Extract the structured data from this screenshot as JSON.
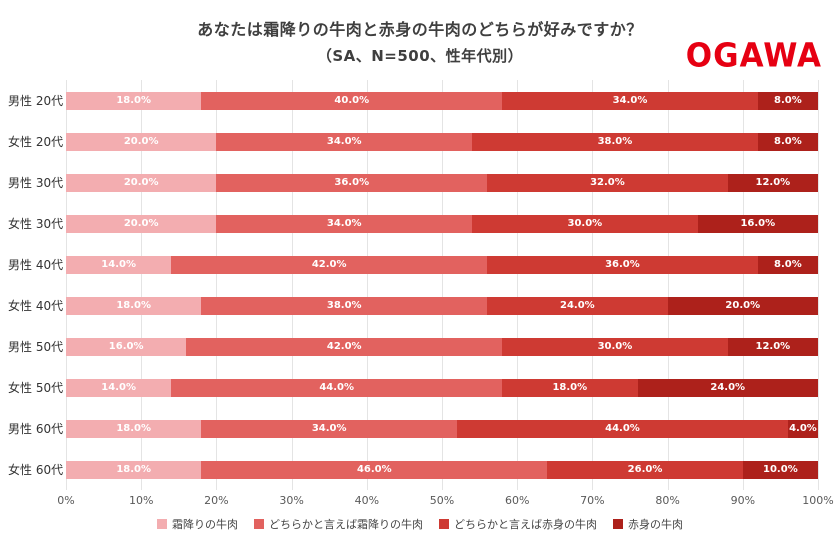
{
  "brand": {
    "logo_text": "OGAWA",
    "logo_color": "#e60012"
  },
  "chart_data": {
    "type": "bar",
    "variant": "horizontal-stacked",
    "title": "あなたは霜降りの牛肉と赤身の牛肉のどちらが好みですか？",
    "subtitle": "（SA、N=500、性年代別）",
    "categories": [
      "男性 20代",
      "女性 20代",
      "男性 30代",
      "女性 30代",
      "男性 40代",
      "女性 40代",
      "男性 50代",
      "女性 50代",
      "男性 60代",
      "女性 60代"
    ],
    "series": [
      {
        "name": "霜降りの牛肉",
        "color": "#f3adb0",
        "values": [
          18.0,
          20.0,
          20.0,
          20.0,
          14.0,
          18.0,
          16.0,
          14.0,
          18.0,
          18.0
        ]
      },
      {
        "name": "どちらかと言えば霜降りの牛肉",
        "color": "#e2625f",
        "values": [
          40.0,
          34.0,
          36.0,
          34.0,
          42.0,
          38.0,
          42.0,
          44.0,
          34.0,
          46.0
        ]
      },
      {
        "name": "どちらかと言えば赤身の牛肉",
        "color": "#ce3a33",
        "values": [
          34.0,
          38.0,
          32.0,
          30.0,
          36.0,
          24.0,
          30.0,
          18.0,
          44.0,
          26.0
        ]
      },
      {
        "name": "赤身の牛肉",
        "color": "#ad211b",
        "values": [
          8.0,
          8.0,
          12.0,
          16.0,
          8.0,
          20.0,
          12.0,
          24.0,
          4.0,
          10.0
        ]
      }
    ],
    "xlim": [
      0,
      100
    ],
    "x_ticks": [
      "0%",
      "10%",
      "20%",
      "30%",
      "40%",
      "50%",
      "60%",
      "70%",
      "80%",
      "90%",
      "100%"
    ],
    "grid": true,
    "legend_position": "bottom",
    "value_label_suffix": "%"
  }
}
